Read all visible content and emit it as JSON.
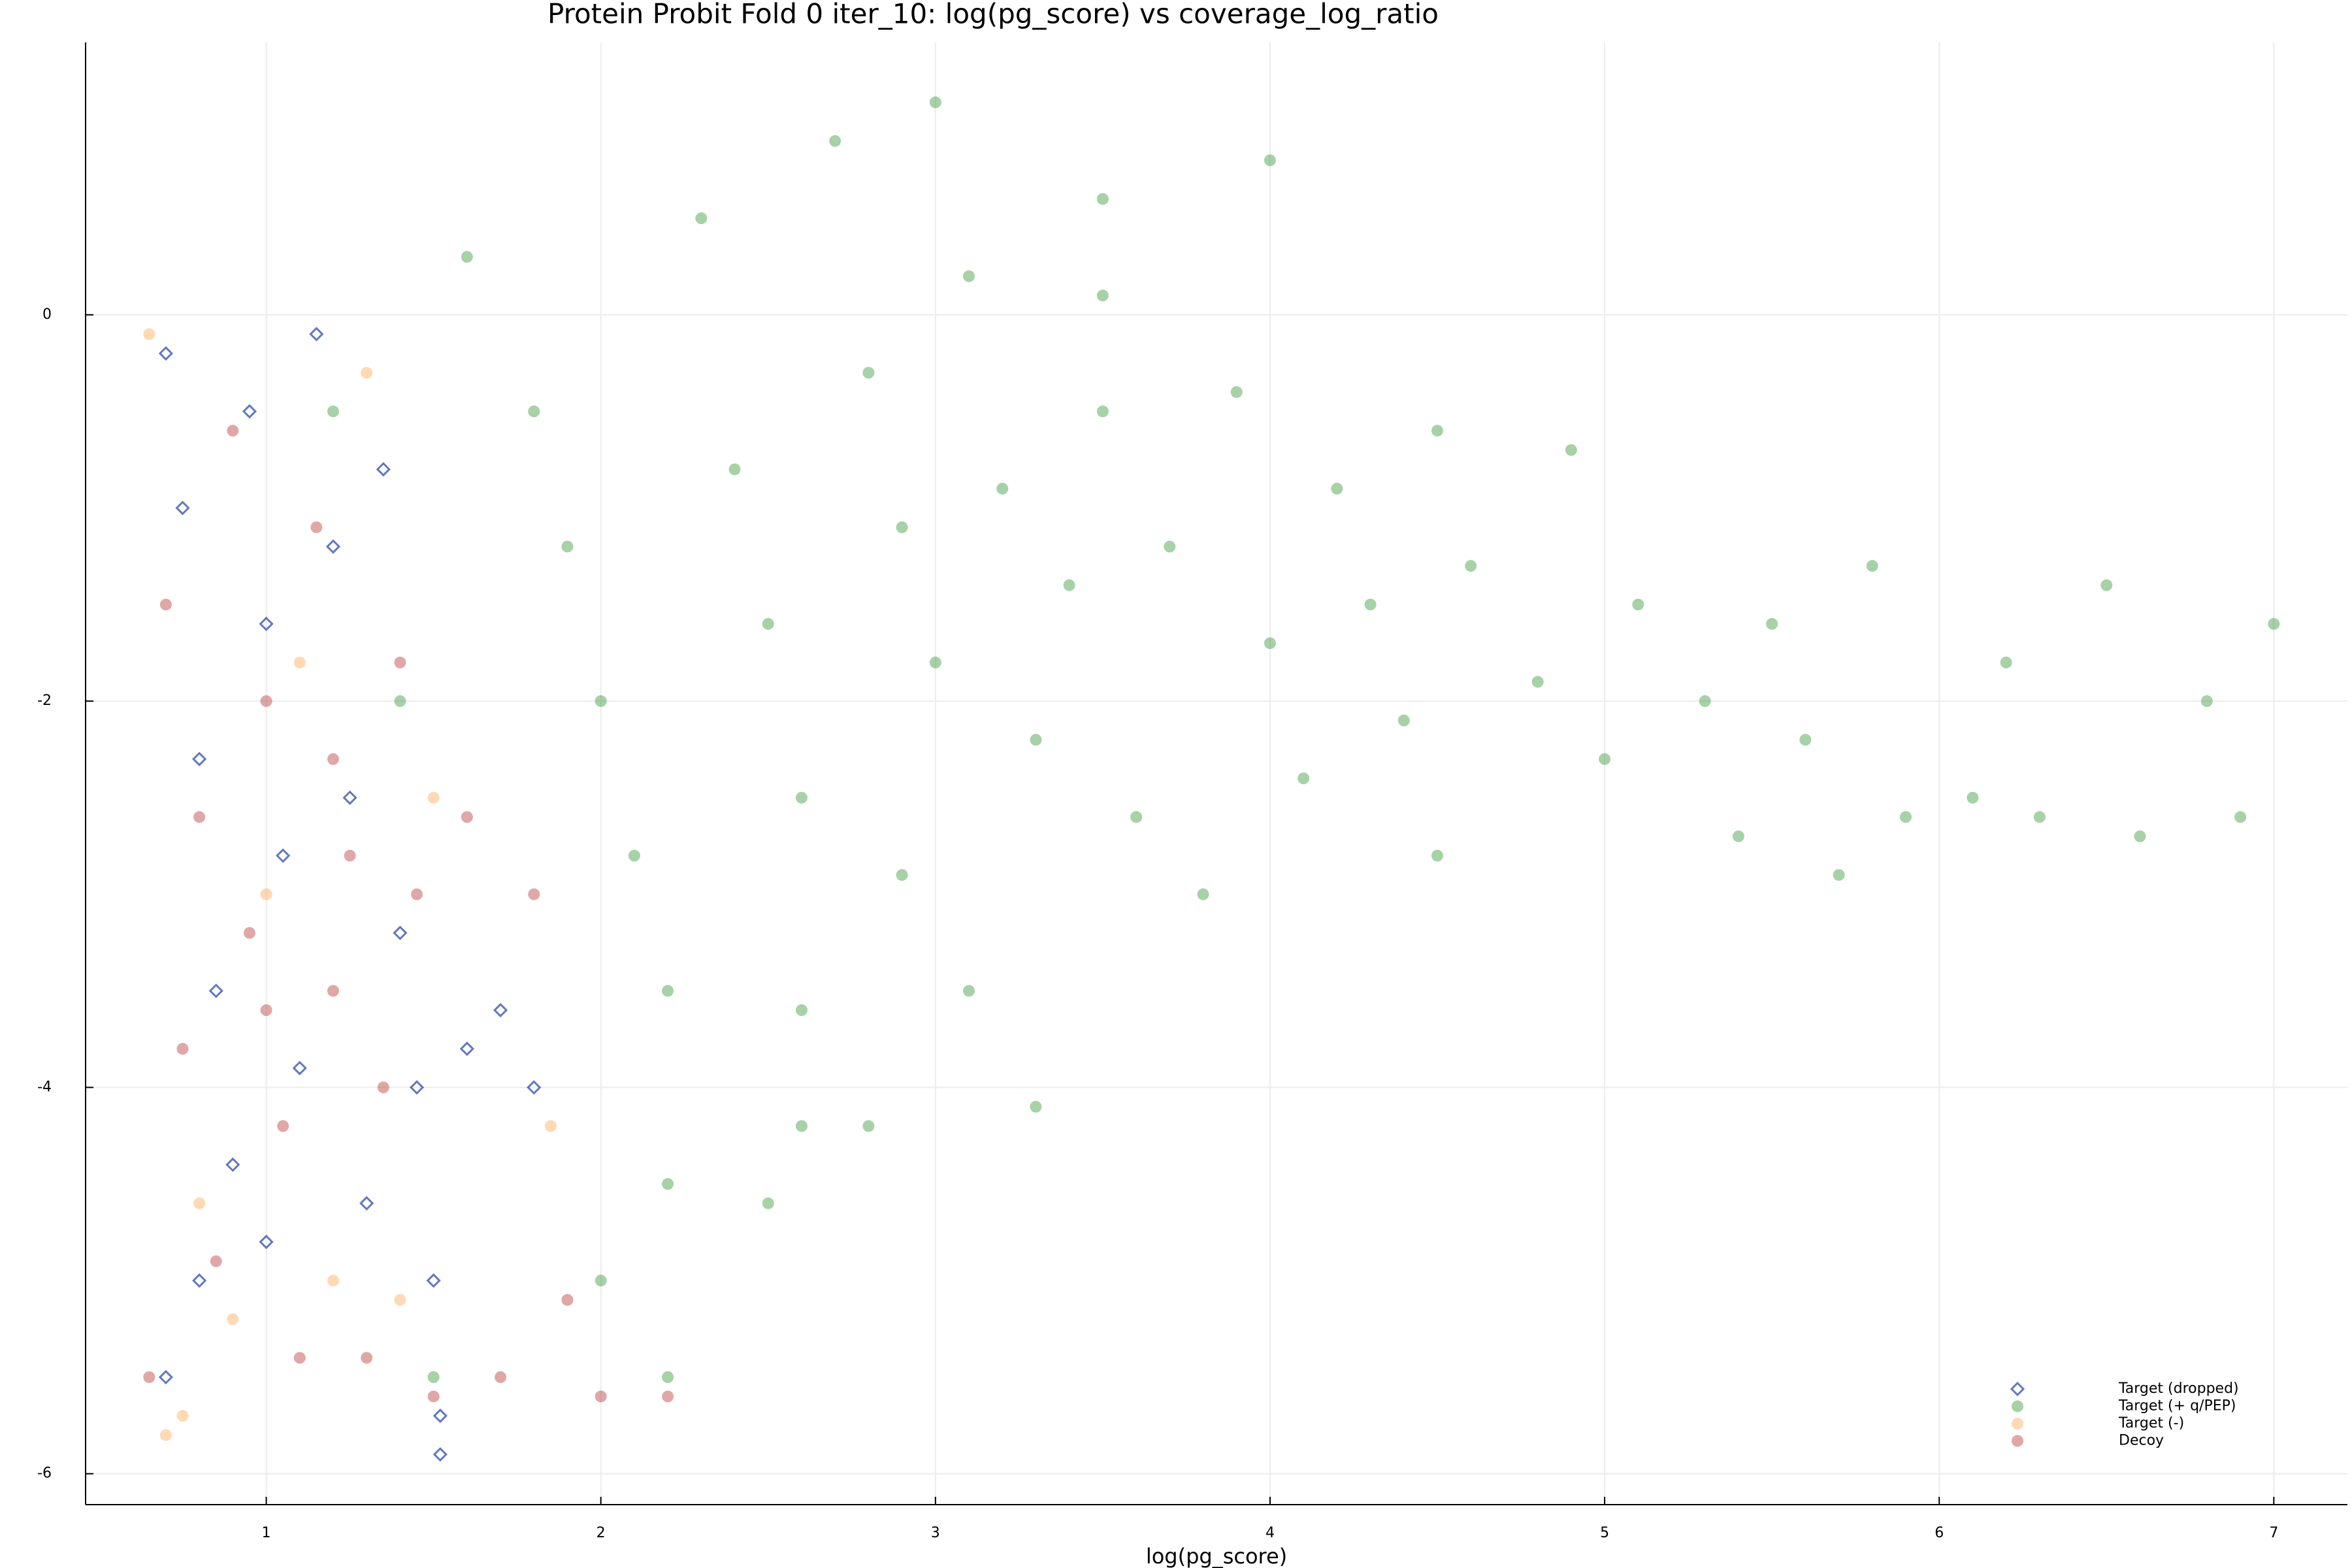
{
  "chart_data": {
    "type": "scatter",
    "title": "Protein Probit Fold 0 iter_10: log(pg_score) vs coverage_log_ratio",
    "x_label": "log(pg_score)",
    "xlim": [
      0.46,
      7.22
    ],
    "ylim": [
      -6.16,
      1.41
    ],
    "xticks": [
      1,
      2,
      3,
      4,
      5,
      6,
      7
    ],
    "yticks": [
      -6,
      -4,
      -2,
      0
    ],
    "grid": true,
    "legend": "bottom-right",
    "series": [
      {
        "name": "Target (dropped)",
        "color": "#1f3fa6",
        "marker": "diamond",
        "x": [
          0.7,
          0.75,
          0.8,
          0.85,
          0.9,
          0.95,
          1.0,
          1.05,
          1.1,
          1.15,
          1.2,
          1.25,
          1.3,
          1.35,
          1.4,
          1.45,
          1.5,
          1.52,
          1.52,
          1.6,
          1.7,
          1.8,
          0.7,
          0.8,
          1.0
        ],
        "y": [
          -0.2,
          -1.0,
          -2.3,
          -3.5,
          -4.4,
          -0.5,
          -1.6,
          -2.8,
          -3.9,
          -0.1,
          -1.2,
          -2.5,
          -4.6,
          -0.8,
          -3.2,
          -4.0,
          -5.0,
          -5.7,
          -5.9,
          -3.8,
          -3.6,
          -4.0,
          -5.5,
          -5.0,
          -4.8
        ]
      },
      {
        "name": "Target (+ q/PEP)",
        "color": "#228b22",
        "marker": "circle",
        "x": [
          1.6,
          1.8,
          1.9,
          2.0,
          2.1,
          2.2,
          2.2,
          2.2,
          2.3,
          2.4,
          2.5,
          2.6,
          2.6,
          2.6,
          2.7,
          2.8,
          2.9,
          2.9,
          3.0,
          3.1,
          3.1,
          3.2,
          3.3,
          3.3,
          3.4,
          3.5,
          3.5,
          3.6,
          3.7,
          3.8,
          3.9,
          4.0,
          4.0,
          4.1,
          4.2,
          4.3,
          4.4,
          4.5,
          4.5,
          4.6,
          4.8,
          4.9,
          5.0,
          5.1,
          5.3,
          5.4,
          5.5,
          5.6,
          5.7,
          5.8,
          5.9,
          6.1,
          6.2,
          6.3,
          6.5,
          6.6,
          6.8,
          6.9,
          7.0,
          1.5,
          1.4,
          1.2,
          2.0,
          3.0,
          3.5,
          2.5,
          2.8
        ],
        "y": [
          0.3,
          -0.5,
          -1.2,
          -2.0,
          -2.8,
          -3.5,
          -4.5,
          -5.5,
          0.5,
          -0.8,
          -1.6,
          -2.5,
          -3.6,
          -4.2,
          0.9,
          -0.3,
          -1.1,
          -2.9,
          -1.8,
          0.2,
          -3.5,
          -0.9,
          -2.2,
          -4.1,
          -1.4,
          0.6,
          -0.5,
          -2.6,
          -1.2,
          -3.0,
          -0.4,
          -1.7,
          0.8,
          -2.4,
          -0.9,
          -1.5,
          -2.1,
          -0.6,
          -2.8,
          -1.3,
          -1.9,
          -0.7,
          -2.3,
          -1.5,
          -2.0,
          -2.7,
          -1.6,
          -2.2,
          -2.9,
          -1.3,
          -2.6,
          -2.5,
          -1.8,
          -2.6,
          -1.4,
          -2.7,
          -2.0,
          -2.6,
          -1.6,
          -5.5,
          -2.0,
          -0.5,
          -5.0,
          1.1,
          0.1,
          -4.6,
          -4.2
        ]
      },
      {
        "name": "Target (-)",
        "color": "#ffa040",
        "marker": "circle",
        "x": [
          0.65,
          0.7,
          0.8,
          0.9,
          1.0,
          1.1,
          1.2,
          1.3,
          1.4,
          1.5,
          0.75,
          1.85
        ],
        "y": [
          -0.1,
          -5.8,
          -4.6,
          -5.2,
          -3.0,
          -1.8,
          -5.0,
          -0.3,
          -5.1,
          -2.5,
          -5.7,
          -4.2
        ]
      },
      {
        "name": "Decoy",
        "color": "#b22222",
        "marker": "circle",
        "x": [
          0.65,
          0.7,
          0.75,
          0.8,
          0.85,
          0.9,
          0.95,
          1.0,
          1.05,
          1.1,
          1.15,
          1.2,
          1.25,
          1.3,
          1.35,
          1.4,
          1.45,
          1.5,
          1.6,
          1.7,
          1.8,
          1.9,
          2.0,
          2.2,
          1.0,
          1.2
        ],
        "y": [
          -5.5,
          -1.5,
          -3.8,
          -2.6,
          -4.9,
          -0.6,
          -3.2,
          -2.0,
          -4.2,
          -5.4,
          -1.1,
          -3.5,
          -2.8,
          -5.4,
          -4.0,
          -1.8,
          -3.0,
          -5.6,
          -2.6,
          -5.5,
          -3.0,
          -5.1,
          -5.6,
          -5.6,
          -3.6,
          -2.3
        ]
      }
    ]
  }
}
